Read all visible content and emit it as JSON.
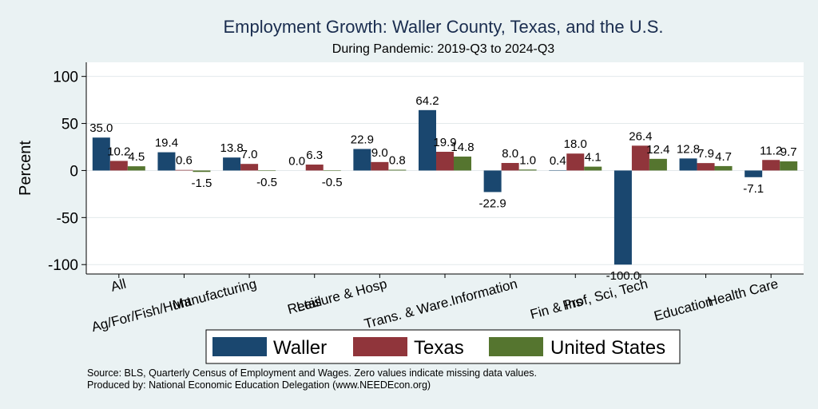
{
  "chart_data": {
    "type": "bar",
    "title": "Employment Growth: Waller County, Texas, and the U.S.",
    "subtitle": "During Pandemic: 2019-Q3 to 2024-Q3",
    "ylabel": "Percent",
    "xlabel": "",
    "ylim": [
      -110,
      115
    ],
    "yticks": [
      100,
      50,
      0,
      -50,
      -100
    ],
    "grid": true,
    "legend_position": "bottom",
    "categories": [
      "All",
      "Ag/For/Fish/Hunt",
      "Manufacturing",
      "Retail",
      "Leisure & Hosp",
      "Trans. & Ware.",
      "Information",
      "Fin & Ins",
      "Prof, Sci, Tech",
      "Education",
      "Health Care"
    ],
    "series": [
      {
        "name": "Waller",
        "color": "#1a476f",
        "values": [
          35.0,
          19.4,
          13.8,
          0.0,
          22.9,
          64.2,
          -22.9,
          0.4,
          -100.0,
          12.8,
          -7.1
        ],
        "labels": [
          "35.0",
          "19.4",
          "13.8",
          "0.0",
          "22.9",
          "64.2",
          "-22.9",
          "0.4",
          "-100.0",
          "12.8",
          "-7.1"
        ]
      },
      {
        "name": "Texas",
        "color": "#90353b",
        "values": [
          10.2,
          0.6,
          7.0,
          6.3,
          9.0,
          19.9,
          8.0,
          18.0,
          26.4,
          7.9,
          11.2
        ],
        "labels": [
          "10.2",
          "0.6",
          "7.0",
          "6.3",
          "9.0",
          "19.9",
          "8.0",
          "18.0",
          "26.4",
          "7.9",
          "11.2"
        ]
      },
      {
        "name": "United States",
        "color": "#55752f",
        "values": [
          4.5,
          -1.5,
          -0.5,
          -0.5,
          0.8,
          14.8,
          1.0,
          4.1,
          12.4,
          4.7,
          9.7
        ],
        "labels": [
          "4.5",
          "-1.5",
          "-0.5",
          "-0.5",
          "0.8",
          "14.8",
          "1.0",
          "4.1",
          "12.4",
          "4.7",
          "9.7"
        ]
      }
    ],
    "notes": [
      "Source: BLS, Quarterly Census of Employment and Wages. Zero values indicate missing data values.",
      "Produced by: National Economic Education Delegation (www.NEEDEcon.org)"
    ]
  }
}
